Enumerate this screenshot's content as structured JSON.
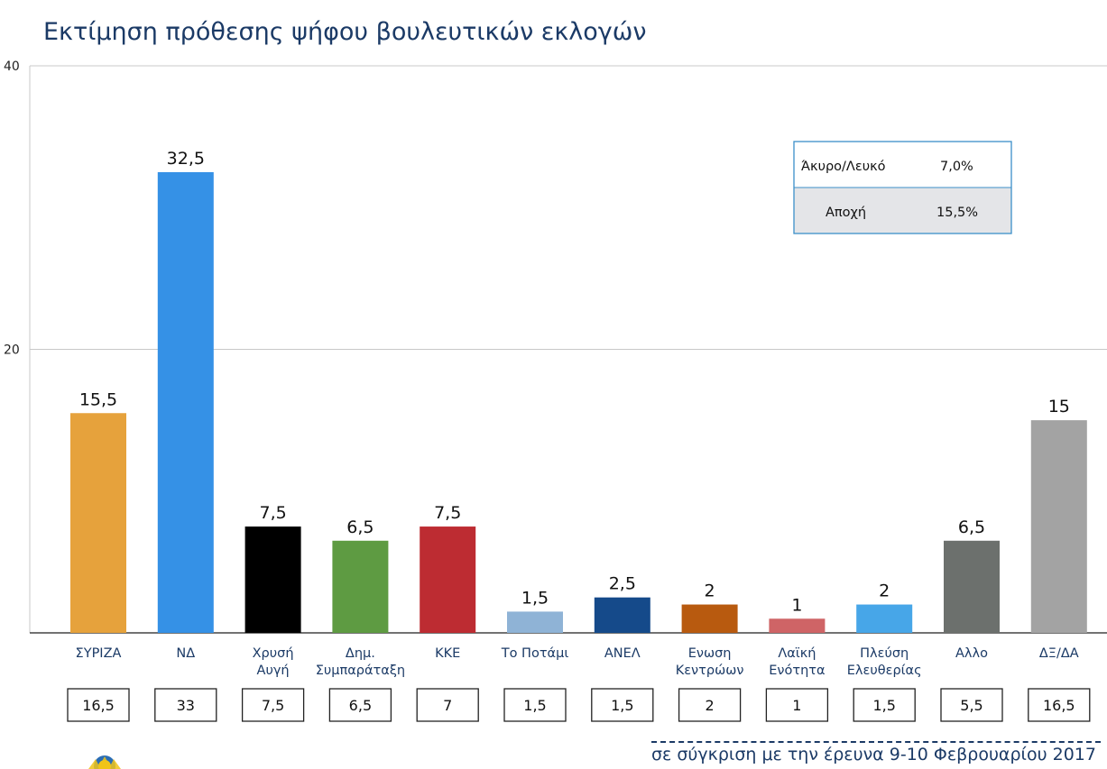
{
  "title": "Εκτίμηση πρόθεσης ψήφου βουλευτικών εκλογών",
  "footnote": "σε σύγκριση με την έρευνα 9-10 Φεβρουαρίου 2017",
  "chart_data": {
    "type": "bar",
    "title": "Εκτίμηση πρόθεσης ψήφου βουλευτικών εκλογών",
    "ylim": [
      0,
      40
    ],
    "yticks": [
      "0",
      "20",
      "40"
    ],
    "grid": true,
    "categories": [
      [
        "ΣΥΡΙΖΑ"
      ],
      [
        "ΝΔ"
      ],
      [
        "Χρυσή",
        "Αυγή"
      ],
      [
        "Δημ.",
        "Συμπαράταξη"
      ],
      [
        "ΚΚΕ"
      ],
      [
        "Το Ποτάμι"
      ],
      [
        "ΑΝΕΛ"
      ],
      [
        "Ενωση",
        "Κεντρώων"
      ],
      [
        "Λαϊκή",
        "Ενότητα"
      ],
      [
        "Πλεύση",
        "Ελευθερίας"
      ],
      [
        "Αλλο"
      ],
      [
        "ΔΞ/ΔΑ"
      ]
    ],
    "values": [
      15.5,
      32.5,
      7.5,
      6.5,
      7.5,
      1.5,
      2.5,
      2,
      1,
      2,
      6.5,
      15
    ],
    "value_labels": [
      "15,5",
      "32,5",
      "7,5",
      "6,5",
      "7,5",
      "1,5",
      "2,5",
      "2",
      "1",
      "2",
      "6,5",
      "15"
    ],
    "colors": [
      "#e6a23c",
      "#3591e6",
      "#000000",
      "#5e9b42",
      "#bd2c32",
      "#8fb3d6",
      "#154a8a",
      "#b85a0f",
      "#cf6466",
      "#47a6e8",
      "#6c706d",
      "#a3a3a3"
    ],
    "comparison_values": [
      "16,5",
      "33",
      "7,5",
      "6,5",
      "7",
      "1,5",
      "1,5",
      "2",
      "1",
      "1,5",
      "5,5",
      "16,5"
    ]
  },
  "legend_box": {
    "rows": [
      {
        "label": "Άκυρο/Λευκό",
        "value": "7,0%"
      },
      {
        "label": "Αποχή",
        "value": "15,5%"
      }
    ],
    "border_color": "#3b8fc9",
    "row2_bg": "#e4e5e8"
  }
}
